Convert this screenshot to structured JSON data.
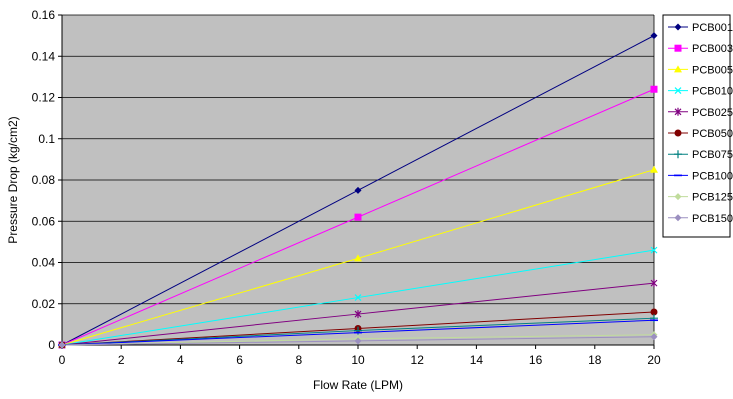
{
  "chart_data": {
    "type": "line",
    "title": "",
    "xlabel": "Flow Rate (LPM)",
    "ylabel": "Pressure Drop (kg/cm2)",
    "xlim": [
      0,
      20
    ],
    "ylim": [
      0,
      0.16
    ],
    "x_ticks": [
      "0",
      "2",
      "4",
      "6",
      "8",
      "10",
      "12",
      "14",
      "16",
      "18",
      "20"
    ],
    "y_ticks": [
      "0",
      "0.02",
      "0.04",
      "0.06",
      "0.08",
      "0.1",
      "0.12",
      "0.14",
      "0.16"
    ],
    "x": [
      0,
      10,
      20
    ],
    "grid": "horizontal",
    "plot_background": "#c0c0c0",
    "legend_position": "right",
    "series": [
      {
        "name": "PCB001",
        "values": [
          0,
          0.075,
          0.15
        ],
        "color": "#000080",
        "marker": "diamond"
      },
      {
        "name": "PCB003",
        "values": [
          0,
          0.062,
          0.124
        ],
        "color": "#ff00ff",
        "marker": "square"
      },
      {
        "name": "PCB005",
        "values": [
          0,
          0.042,
          0.085
        ],
        "color": "#ffff00",
        "marker": "triangle"
      },
      {
        "name": "PCB010",
        "values": [
          0,
          0.023,
          0.046
        ],
        "color": "#00ffff",
        "marker": "x"
      },
      {
        "name": "PCB025",
        "values": [
          0,
          0.015,
          0.03
        ],
        "color": "#800080",
        "marker": "star"
      },
      {
        "name": "PCB050",
        "values": [
          0,
          0.008,
          0.016
        ],
        "color": "#800000",
        "marker": "circle"
      },
      {
        "name": "PCB075",
        "values": [
          0,
          0.007,
          0.013
        ],
        "color": "#008080",
        "marker": "plus"
      },
      {
        "name": "PCB100",
        "values": [
          0,
          0.006,
          0.012
        ],
        "color": "#0000ff",
        "marker": "dash"
      },
      {
        "name": "PCB125",
        "values": [
          0,
          0.003,
          0.005
        ],
        "color": "#c0dc9c",
        "marker": "diamond"
      },
      {
        "name": "PCB150",
        "values": [
          0,
          0.002,
          0.004
        ],
        "color": "#9b8fc0",
        "marker": "diamond"
      }
    ]
  }
}
